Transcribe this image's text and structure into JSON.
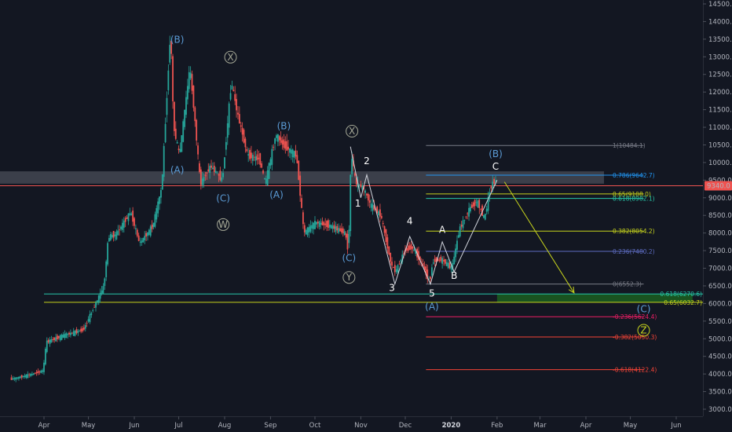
{
  "chart_data": {
    "type": "candlestick",
    "instrument_price_label": "9340.0",
    "y_axis": {
      "ylim": [
        2850,
        14600
      ],
      "ticks": [
        3000,
        3500,
        4000,
        4500,
        5000,
        5500,
        6000,
        6500,
        7000,
        7500,
        8000,
        8500,
        9000,
        9500,
        10000,
        10500,
        11000,
        11500,
        12000,
        12500,
        13000,
        13500,
        14000,
        14500
      ],
      "tick_labels": [
        "3000.0",
        "3500.0",
        "4000.0",
        "4500.0",
        "5000.0",
        "5500.0",
        "6000.0",
        "6500.0",
        "7000.0",
        "7500.0",
        "8000.0",
        "8500.0",
        "9000.0",
        "9500.0",
        "10000.0",
        "10500.0",
        "11000.0",
        "11500.0",
        "12000.0",
        "12500.0",
        "13000.0",
        "13500.0",
        "14000.0",
        "14500.0"
      ]
    },
    "x_axis": {
      "xlim": [
        "2019-03-10",
        "2020-06-30"
      ],
      "ticks": [
        {
          "date": "2019-04-01",
          "label": "Apr"
        },
        {
          "date": "2019-05-01",
          "label": "May"
        },
        {
          "date": "2019-06-01",
          "label": "Jun"
        },
        {
          "date": "2019-07-01",
          "label": "Jul"
        },
        {
          "date": "2019-08-01",
          "label": "Aug"
        },
        {
          "date": "2019-09-01",
          "label": "Sep"
        },
        {
          "date": "2019-10-01",
          "label": "Oct"
        },
        {
          "date": "2019-11-01",
          "label": "Nov"
        },
        {
          "date": "2019-12-01",
          "label": "Dec"
        },
        {
          "date": "2020-01-01",
          "label": "2020",
          "bold": true
        },
        {
          "date": "2020-02-01",
          "label": "Feb"
        },
        {
          "date": "2020-03-01",
          "label": "Mar"
        },
        {
          "date": "2020-04-01",
          "label": "Apr"
        },
        {
          "date": "2020-05-01",
          "label": "May"
        },
        {
          "date": "2020-06-01",
          "label": "Jun"
        }
      ]
    },
    "price_path": [
      [
        "2019-03-10",
        3850
      ],
      [
        "2019-03-25",
        4000
      ],
      [
        "2019-04-01",
        4100
      ],
      [
        "2019-04-03",
        4900
      ],
      [
        "2019-04-15",
        5100
      ],
      [
        "2019-04-28",
        5250
      ],
      [
        "2019-05-12",
        6500
      ],
      [
        "2019-05-15",
        7900
      ],
      [
        "2019-05-20",
        7950
      ],
      [
        "2019-05-30",
        8600
      ],
      [
        "2019-06-05",
        7700
      ],
      [
        "2019-06-14",
        8200
      ],
      [
        "2019-06-20",
        9300
      ],
      [
        "2019-06-26",
        13800
      ],
      [
        "2019-06-28",
        11000
      ],
      [
        "2019-07-02",
        10200
      ],
      [
        "2019-07-09",
        12700
      ],
      [
        "2019-07-12",
        11400
      ],
      [
        "2019-07-16",
        9400
      ],
      [
        "2019-07-23",
        9900
      ],
      [
        "2019-07-31",
        9500
      ],
      [
        "2019-08-06",
        12300
      ],
      [
        "2019-08-10",
        11400
      ],
      [
        "2019-08-17",
        10200
      ],
      [
        "2019-08-25",
        10100
      ],
      [
        "2019-08-29",
        9400
      ],
      [
        "2019-09-05",
        10800
      ],
      [
        "2019-09-10",
        10500
      ],
      [
        "2019-09-19",
        10200
      ],
      [
        "2019-09-24",
        8000
      ],
      [
        "2019-10-02",
        8300
      ],
      [
        "2019-10-12",
        8200
      ],
      [
        "2019-10-22",
        8000
      ],
      [
        "2019-10-24",
        7450
      ],
      [
        "2019-10-26",
        10300
      ],
      [
        "2019-10-29",
        9400
      ],
      [
        "2019-11-03",
        9300
      ],
      [
        "2019-11-08",
        8800
      ],
      [
        "2019-11-15",
        8500
      ],
      [
        "2019-11-22",
        7100
      ],
      [
        "2019-11-25",
        6900
      ],
      [
        "2019-12-01",
        7500
      ],
      [
        "2019-12-06",
        7600
      ],
      [
        "2019-12-12",
        7200
      ],
      [
        "2019-12-18",
        6600
      ],
      [
        "2019-12-20",
        7200
      ],
      [
        "2019-12-26",
        7250
      ],
      [
        "2020-01-02",
        7000
      ],
      [
        "2020-01-07",
        8100
      ],
      [
        "2020-01-14",
        8700
      ],
      [
        "2020-01-19",
        8900
      ],
      [
        "2020-01-24",
        8400
      ],
      [
        "2020-01-28",
        9300
      ],
      [
        "2020-01-31",
        9500
      ]
    ],
    "wave_path": [
      [
        "2019-10-25",
        10450
      ],
      [
        "2019-11-01",
        9000
      ],
      [
        "2019-11-05",
        9650
      ],
      [
        "2019-11-24",
        6550
      ],
      [
        "2019-12-04",
        7900
      ],
      [
        "2019-12-18",
        6550
      ],
      [
        "2019-12-26",
        7750
      ],
      [
        "2020-01-03",
        6900
      ],
      [
        "2020-02-01",
        9500
      ]
    ],
    "projection_arrow": {
      "from": [
        "2020-02-06",
        9450
      ],
      "to": [
        "2020-03-24",
        6300
      ]
    },
    "resistance_zone": {
      "from": 9400,
      "to": 9750
    },
    "current_price": 9340,
    "fib_right_levels": [
      {
        "label": "1(10484.1)",
        "value": 10484.1,
        "color": "#787b86",
        "start": "2019-12-15"
      },
      {
        "label": "0.786(9642.7)",
        "value": 9642.7,
        "color": "#2196f3",
        "start": "2019-12-15"
      },
      {
        "label": "0.65(9108.0)",
        "value": 9108.0,
        "color": "#c6d31d",
        "start": "2019-12-15"
      },
      {
        "label": "0.618(8982.1)",
        "value": 8982.1,
        "color": "#26c6a8",
        "start": "2019-12-15"
      },
      {
        "label": "0.382(8054.2)",
        "value": 8054.2,
        "color": "#c6d31d",
        "start": "2019-12-15"
      },
      {
        "label": "0.236(7480.2)",
        "value": 7480.2,
        "color": "#5c6bc0",
        "start": "2019-12-15"
      },
      {
        "label": "0(6552.3)",
        "value": 6552.3,
        "color": "#787b86",
        "start": "2019-12-15"
      },
      {
        "label": "-0.236(5624.4)",
        "value": 5624.4,
        "color": "#e91e63",
        "start": "2019-12-15"
      },
      {
        "label": "-0.382(5050.3)",
        "value": 5050.3,
        "color": "#f44336",
        "start": "2019-12-15"
      },
      {
        "label": "-0.618(4122.4)",
        "value": 4122.4,
        "color": "#f44336",
        "start": "2019-12-15"
      }
    ],
    "fib_support_levels": [
      {
        "label": "0.618(6270.6)",
        "value": 6270.6,
        "color": "#26c6a8"
      },
      {
        "label": "0.65(6032.7)",
        "value": 6032.7,
        "color": "#c6d31d"
      }
    ],
    "support_box": {
      "from": 6030,
      "to": 6270,
      "start": "2020-02-01",
      "end": "2020-06-12"
    },
    "wave_labels": [
      {
        "text": "(B)",
        "date": "2019-06-30",
        "price": 13400,
        "color": "#5b9bd5"
      },
      {
        "text": "X",
        "date": "2019-08-05",
        "price": 12900,
        "color": "#a5a896",
        "circle": true
      },
      {
        "text": "(B)",
        "date": "2019-09-10",
        "price": 10950,
        "color": "#5b9bd5"
      },
      {
        "text": "(A)",
        "date": "2019-06-30",
        "price": 9700,
        "color": "#5b9bd5"
      },
      {
        "text": "(C)",
        "date": "2019-07-31",
        "price": 8900,
        "color": "#5b9bd5"
      },
      {
        "text": "W",
        "date": "2019-07-31",
        "price": 8150,
        "color": "#a5a896",
        "circle": true
      },
      {
        "text": "(A)",
        "date": "2019-09-05",
        "price": 9000,
        "color": "#5b9bd5"
      },
      {
        "text": "X",
        "date": "2019-10-26",
        "price": 10800,
        "color": "#a5a896",
        "circle": true
      },
      {
        "text": "2",
        "date": "2019-11-05",
        "price": 9950,
        "color": "#ffffff"
      },
      {
        "text": "1",
        "date": "2019-10-30",
        "price": 8750,
        "color": "#ffffff"
      },
      {
        "text": "(C)",
        "date": "2019-10-24",
        "price": 7200,
        "color": "#5b9bd5"
      },
      {
        "text": "Y",
        "date": "2019-10-24",
        "price": 6650,
        "color": "#a5a896",
        "circle": true
      },
      {
        "text": "4",
        "date": "2019-12-04",
        "price": 8250,
        "color": "#ffffff"
      },
      {
        "text": "3",
        "date": "2019-11-22",
        "price": 6350,
        "color": "#ffffff"
      },
      {
        "text": "A",
        "date": "2019-12-26",
        "price": 8000,
        "color": "#ffffff"
      },
      {
        "text": "5",
        "date": "2019-12-19",
        "price": 6200,
        "color": "#ffffff"
      },
      {
        "text": "B",
        "date": "2020-01-03",
        "price": 6700,
        "color": "#ffffff"
      },
      {
        "text": "(A)",
        "date": "2019-12-19",
        "price": 5820,
        "color": "#5b9bd5"
      },
      {
        "text": "(B)",
        "date": "2020-01-31",
        "price": 10150,
        "color": "#5b9bd5"
      },
      {
        "text": "C",
        "date": "2020-01-31",
        "price": 9800,
        "color": "#ffffff"
      },
      {
        "text": "(C)",
        "date": "2020-05-10",
        "price": 5750,
        "color": "#5b9bd5"
      },
      {
        "text": "Z",
        "date": "2020-05-10",
        "price": 5150,
        "color": "#c6d31d",
        "circle": true
      }
    ]
  }
}
